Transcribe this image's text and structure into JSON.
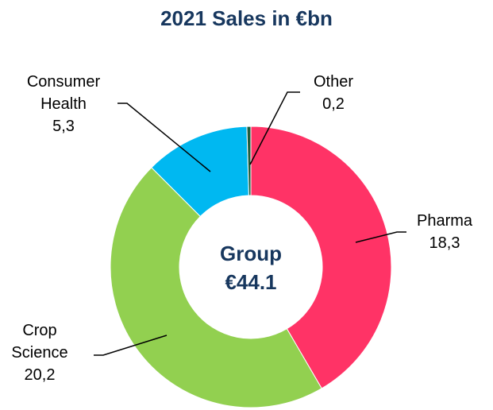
{
  "chart_data": {
    "type": "pie",
    "title": "2021 Sales in €bn",
    "categories": [
      "Pharma",
      "Crop Science",
      "Consumer Health",
      "Other"
    ],
    "values": [
      18.3,
      20.2,
      5.3,
      0.2
    ],
    "value_labels": [
      "18,3",
      "20,2",
      "5,3",
      "0,2"
    ],
    "colors": [
      "#ff3366",
      "#92d050",
      "#00b8f1",
      "#1e5c3c"
    ],
    "center_label": [
      "Group",
      "€44.1"
    ]
  }
}
